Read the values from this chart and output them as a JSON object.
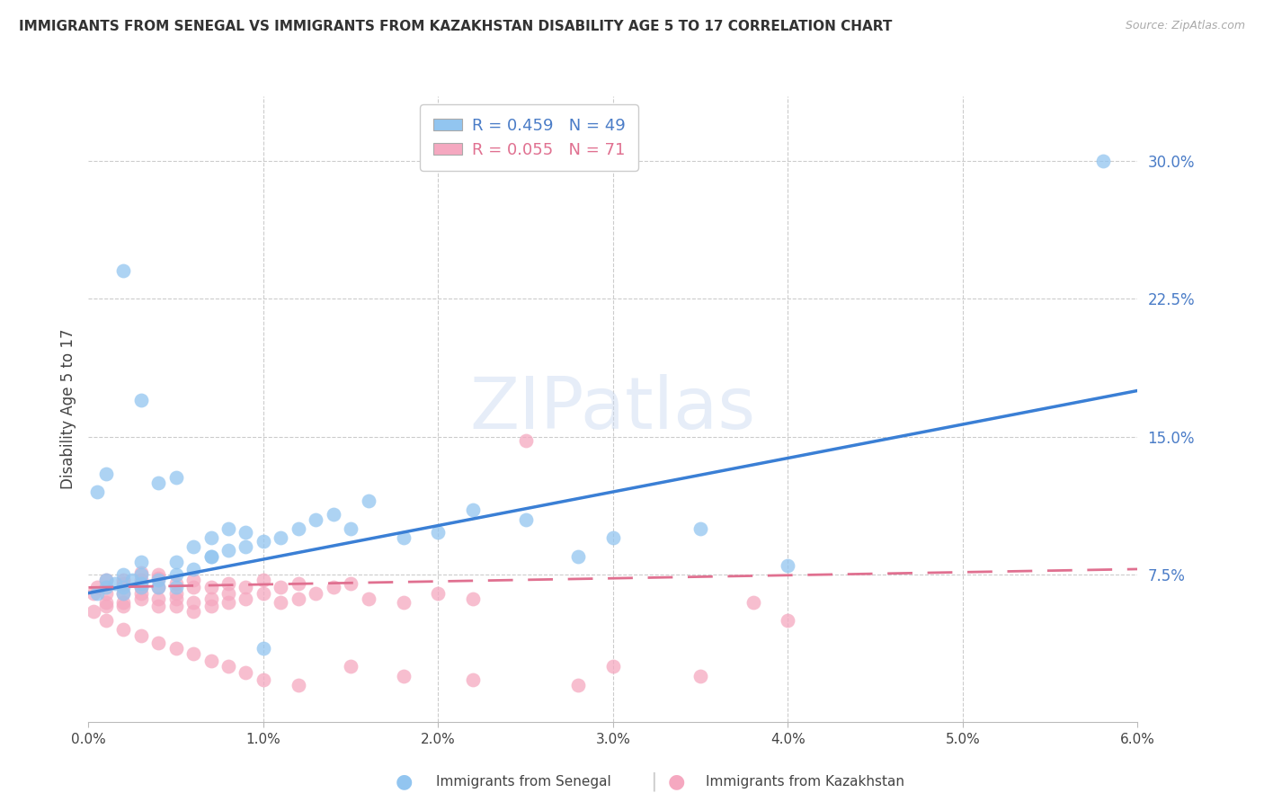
{
  "title": "IMMIGRANTS FROM SENEGAL VS IMMIGRANTS FROM KAZAKHSTAN DISABILITY AGE 5 TO 17 CORRELATION CHART",
  "source": "Source: ZipAtlas.com",
  "ylabel": "Disability Age 5 to 17",
  "xlabel_senegal": "Immigrants from Senegal",
  "xlabel_kazakhstan": "Immigrants from Kazakhstan",
  "xlim": [
    0.0,
    0.06
  ],
  "ylim": [
    -0.005,
    0.335
  ],
  "yticks": [
    0.075,
    0.15,
    0.225,
    0.3
  ],
  "ytick_labels": [
    "7.5%",
    "15.0%",
    "22.5%",
    "30.0%"
  ],
  "xticks": [
    0.0,
    0.01,
    0.02,
    0.03,
    0.04,
    0.05,
    0.06
  ],
  "xtick_labels": [
    "0.0%",
    "1.0%",
    "2.0%",
    "3.0%",
    "4.0%",
    "5.0%",
    "6.0%"
  ],
  "senegal_color": "#92c5f0",
  "kazakhstan_color": "#f5a8c0",
  "legend_R_senegal": "0.459",
  "legend_N_senegal": "49",
  "legend_R_kazakhstan": "0.055",
  "legend_N_kazakhstan": "71",
  "watermark": "ZIPatlas",
  "senegal_line_x": [
    0.0,
    0.06
  ],
  "senegal_line_y": [
    0.065,
    0.175
  ],
  "kazakhstan_line_x": [
    0.0,
    0.06
  ],
  "kazakhstan_line_y": [
    0.068,
    0.078
  ],
  "senegal_x": [
    0.0005,
    0.001,
    0.001,
    0.0015,
    0.002,
    0.002,
    0.002,
    0.0025,
    0.003,
    0.003,
    0.003,
    0.003,
    0.004,
    0.004,
    0.005,
    0.005,
    0.005,
    0.006,
    0.006,
    0.007,
    0.007,
    0.008,
    0.008,
    0.009,
    0.009,
    0.01,
    0.011,
    0.012,
    0.013,
    0.014,
    0.015,
    0.016,
    0.018,
    0.02,
    0.022,
    0.025,
    0.028,
    0.03,
    0.035,
    0.04,
    0.0005,
    0.001,
    0.002,
    0.003,
    0.004,
    0.005,
    0.007,
    0.01,
    0.058
  ],
  "senegal_y": [
    0.065,
    0.068,
    0.072,
    0.07,
    0.068,
    0.075,
    0.065,
    0.072,
    0.07,
    0.068,
    0.075,
    0.082,
    0.072,
    0.068,
    0.075,
    0.082,
    0.068,
    0.078,
    0.09,
    0.085,
    0.095,
    0.088,
    0.1,
    0.09,
    0.098,
    0.093,
    0.095,
    0.1,
    0.105,
    0.108,
    0.1,
    0.115,
    0.095,
    0.098,
    0.11,
    0.105,
    0.085,
    0.095,
    0.1,
    0.08,
    0.12,
    0.13,
    0.24,
    0.17,
    0.125,
    0.128,
    0.085,
    0.035,
    0.3
  ],
  "kazakhstan_x": [
    0.0003,
    0.0005,
    0.001,
    0.001,
    0.001,
    0.001,
    0.002,
    0.002,
    0.002,
    0.002,
    0.002,
    0.003,
    0.003,
    0.003,
    0.003,
    0.003,
    0.004,
    0.004,
    0.004,
    0.004,
    0.004,
    0.005,
    0.005,
    0.005,
    0.005,
    0.006,
    0.006,
    0.006,
    0.006,
    0.007,
    0.007,
    0.007,
    0.008,
    0.008,
    0.008,
    0.009,
    0.009,
    0.01,
    0.01,
    0.011,
    0.011,
    0.012,
    0.012,
    0.013,
    0.014,
    0.015,
    0.016,
    0.018,
    0.02,
    0.022,
    0.0003,
    0.001,
    0.002,
    0.003,
    0.004,
    0.005,
    0.006,
    0.007,
    0.008,
    0.009,
    0.01,
    0.012,
    0.015,
    0.018,
    0.022,
    0.028,
    0.03,
    0.035,
    0.038,
    0.04,
    0.025
  ],
  "kazakhstan_y": [
    0.065,
    0.068,
    0.06,
    0.072,
    0.058,
    0.065,
    0.07,
    0.065,
    0.058,
    0.072,
    0.06,
    0.068,
    0.072,
    0.062,
    0.076,
    0.065,
    0.068,
    0.073,
    0.062,
    0.058,
    0.075,
    0.07,
    0.065,
    0.062,
    0.058,
    0.072,
    0.068,
    0.06,
    0.055,
    0.068,
    0.062,
    0.058,
    0.07,
    0.065,
    0.06,
    0.068,
    0.062,
    0.072,
    0.065,
    0.068,
    0.06,
    0.07,
    0.062,
    0.065,
    0.068,
    0.07,
    0.062,
    0.06,
    0.065,
    0.062,
    0.055,
    0.05,
    0.045,
    0.042,
    0.038,
    0.035,
    0.032,
    0.028,
    0.025,
    0.022,
    0.018,
    0.015,
    0.025,
    0.02,
    0.018,
    0.015,
    0.025,
    0.02,
    0.06,
    0.05,
    0.148
  ]
}
